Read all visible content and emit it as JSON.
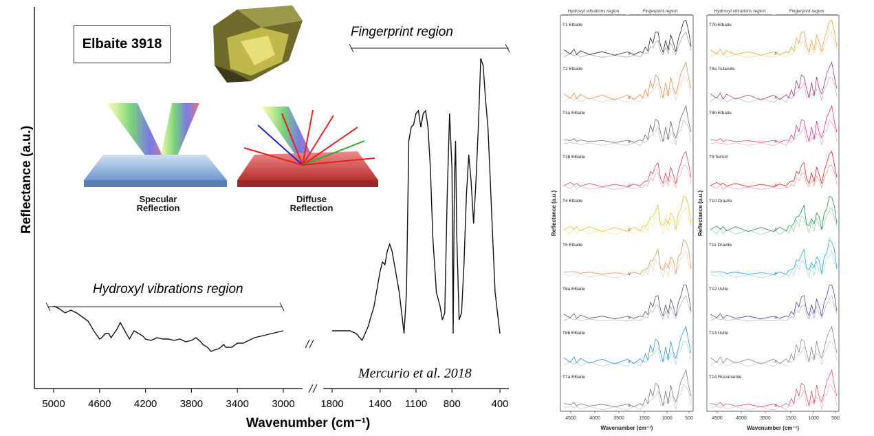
{
  "chart_data": [
    {
      "type": "line",
      "title": "Elbaite 3918",
      "xlabel": "Wavenumber (cm⁻¹)",
      "ylabel": "Reflectance (a.u.)",
      "x_ticks_left": [
        "5000",
        "4600",
        "4200",
        "3800",
        "3400",
        "3000"
      ],
      "x_ticks_right": [
        "1800",
        "1400",
        "1100",
        "800",
        "400"
      ],
      "regions": {
        "hydroxyl": "Hydroxyl vibrations region",
        "fingerprint": "Fingerprint region"
      },
      "illustration_labels": {
        "specular": "Specular\nReflection",
        "diffuse": "Diffuse\nReflection"
      },
      "credit": "Mercurio et al. 2018",
      "series": [
        {
          "segment": "hydroxyl",
          "x": [
            5000,
            4950,
            4900,
            4850,
            4800,
            4750,
            4700,
            4650,
            4600,
            4580,
            4550,
            4520,
            4500,
            4450,
            4420,
            4380,
            4340,
            4300,
            4260,
            4220,
            4200,
            4150,
            4100,
            4050,
            4000,
            3950,
            3900,
            3850,
            3800,
            3760,
            3720,
            3700,
            3660,
            3630,
            3600,
            3560,
            3520,
            3500,
            3450,
            3400,
            3350,
            3300,
            3250,
            3200,
            3150,
            3100,
            3050,
            3000
          ],
          "y": [
            0.3,
            0.28,
            0.25,
            0.27,
            0.25,
            0.22,
            0.19,
            0.12,
            0.06,
            0.07,
            0.1,
            0.1,
            0.07,
            0.13,
            0.18,
            0.12,
            0.06,
            0.12,
            0.1,
            0.08,
            0.06,
            0.05,
            0.07,
            0.06,
            0.06,
            0.05,
            0.06,
            0.04,
            0.05,
            0.07,
            0.04,
            0.02,
            0.0,
            -0.03,
            -0.02,
            -0.01,
            0.02,
            0.0,
            0.0,
            0.03,
            0.03,
            0.05,
            0.07,
            0.08,
            0.09,
            0.1,
            0.11,
            0.12
          ]
        },
        {
          "segment": "fingerprint",
          "x": [
            1800,
            1750,
            1700,
            1650,
            1600,
            1550,
            1500,
            1450,
            1420,
            1400,
            1380,
            1360,
            1340,
            1320,
            1300,
            1270,
            1240,
            1200,
            1180,
            1160,
            1140,
            1120,
            1100,
            1080,
            1060,
            1040,
            1020,
            1000,
            980,
            960,
            930,
            900,
            880,
            860,
            840,
            820,
            800,
            790,
            780,
            770,
            760,
            740,
            720,
            700,
            680,
            660,
            640,
            620,
            600,
            580,
            560,
            540,
            520,
            500,
            480,
            460,
            440,
            420,
            400
          ],
          "y": [
            0.12,
            0.12,
            0.12,
            0.12,
            0.1,
            0.05,
            0.15,
            0.3,
            0.45,
            0.55,
            0.62,
            0.6,
            0.7,
            0.75,
            0.7,
            0.55,
            0.4,
            0.1,
            0.4,
            1.5,
            1.6,
            1.62,
            1.7,
            1.72,
            1.6,
            1.7,
            1.72,
            1.6,
            1.3,
            0.8,
            0.4,
            0.3,
            0.2,
            0.25,
            1.1,
            1.7,
            1.3,
            0.1,
            1.2,
            1.5,
            0.8,
            0.2,
            0.25,
            0.6,
            1.1,
            1.4,
            1.2,
            0.9,
            1.2,
            1.6,
            2.1,
            2.05,
            1.8,
            1.6,
            1.2,
            0.8,
            0.4,
            0.25,
            0.1
          ]
        }
      ]
    },
    {
      "type": "line",
      "xlabel": "Wavenumber (cm⁻¹)",
      "ylabel": "Reflectance (a.u.)",
      "headers": [
        "Hydroxyl vibrations region",
        "Fingerprint region"
      ],
      "x_ticks": [
        "4500",
        "4000",
        "3500",
        "1500",
        "1000",
        "500"
      ],
      "series": [
        {
          "name": "T1 Elbaite",
          "color": "#222222"
        },
        {
          "name": "T2 Elbaite",
          "color": "#e08a50"
        },
        {
          "name": "T3a Elbaite",
          "color": "#666666"
        },
        {
          "name": "T3b Elbaite",
          "color": "#d04050"
        },
        {
          "name": "T4 Elbaite",
          "color": "#f0c020"
        },
        {
          "name": "T5 Elbaite",
          "color": "#e0955a"
        },
        {
          "name": "T6a Elbaite",
          "color": "#505070"
        },
        {
          "name": "T6b Elbaite",
          "color": "#3090c8"
        },
        {
          "name": "T7a Elbaite",
          "color": "#777777"
        }
      ]
    },
    {
      "type": "line",
      "xlabel": "Wavenumber (cm⁻¹)",
      "ylabel": "Reflectance (a.u.)",
      "headers": [
        "Hydroxyl vibrations region",
        "Fingerprint region"
      ],
      "x_ticks": [
        "4500",
        "4000",
        "3500",
        "1500",
        "1000",
        "500"
      ],
      "series": [
        {
          "name": "T7b Elbaite",
          "color": "#f0a030"
        },
        {
          "name": "T8a Tsilaisite",
          "color": "#9a3a80"
        },
        {
          "name": "T8b Elbaite",
          "color": "#e0308a"
        },
        {
          "name": "T9 Schorl",
          "color": "#d02020"
        },
        {
          "name": "T10 Dravite",
          "color": "#209040"
        },
        {
          "name": "T11 Dravite",
          "color": "#20a8d0"
        },
        {
          "name": "T12 Uvite",
          "color": "#5040a0"
        },
        {
          "name": "T13 Uvite",
          "color": "#888888"
        },
        {
          "name": "T14 Rossmanite",
          "color": "#e05060"
        }
      ]
    }
  ]
}
